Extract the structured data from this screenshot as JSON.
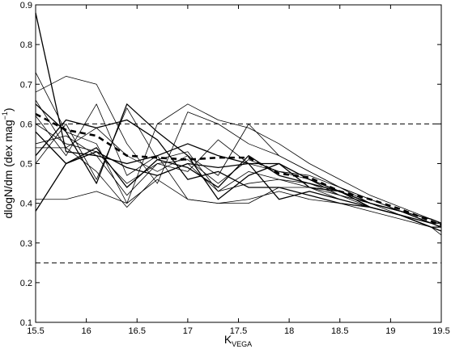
{
  "chart_data": {
    "type": "line",
    "xlabel": "K",
    "xlabel_sub": "VEGA",
    "ylabel": "dlogN/dm (dex mag",
    "ylabel_sup": "−1",
    "ylabel_end": ")",
    "xlim": [
      15.5,
      19.5
    ],
    "ylim": [
      0.1,
      0.9
    ],
    "xticks": [
      "15.5",
      "16",
      "16.5",
      "17",
      "17.5",
      "18",
      "18.5",
      "19",
      "19.5"
    ],
    "yticks": [
      "0.1",
      "0.2",
      "0.3",
      "0.4",
      "0.5",
      "0.6",
      "0.7",
      "0.8",
      "0.9"
    ],
    "reference_lines": [
      0.6,
      0.25
    ],
    "x": [
      15.5,
      15.8,
      16.1,
      16.4,
      16.7,
      17.0,
      17.3,
      17.6,
      17.9,
      18.2,
      18.5,
      18.8,
      19.1,
      19.4,
      19.5
    ],
    "series": [
      {
        "values": [
          0.88,
          0.53,
          0.52,
          0.5,
          0.52,
          0.55,
          0.52,
          0.5,
          0.5,
          0.44,
          0.43,
          0.4,
          0.38,
          0.35,
          0.35
        ]
      },
      {
        "values": [
          0.73,
          0.58,
          0.55,
          0.4,
          0.6,
          0.65,
          0.61,
          0.59,
          0.55,
          0.5,
          0.46,
          0.42,
          0.39,
          0.36,
          0.35
        ]
      },
      {
        "values": [
          0.68,
          0.72,
          0.7,
          0.55,
          0.45,
          0.63,
          0.6,
          0.55,
          0.52,
          0.48,
          0.44,
          0.41,
          0.38,
          0.35,
          0.34
        ]
      },
      {
        "values": [
          0.65,
          0.58,
          0.45,
          0.65,
          0.58,
          0.52,
          0.41,
          0.47,
          0.5,
          0.46,
          0.43,
          0.4,
          0.38,
          0.36,
          0.35
        ]
      },
      {
        "values": [
          0.62,
          0.52,
          0.65,
          0.47,
          0.52,
          0.41,
          0.4,
          0.4,
          0.44,
          0.44,
          0.41,
          0.39,
          0.37,
          0.34,
          0.33
        ]
      },
      {
        "values": [
          0.6,
          0.55,
          0.53,
          0.45,
          0.5,
          0.48,
          0.56,
          0.5,
          0.48,
          0.46,
          0.42,
          0.4,
          0.38,
          0.35,
          0.34
        ]
      },
      {
        "values": [
          0.58,
          0.5,
          0.54,
          0.44,
          0.51,
          0.49,
          0.44,
          0.52,
          0.47,
          0.45,
          0.43,
          0.39,
          0.37,
          0.34,
          0.33
        ]
      },
      {
        "values": [
          0.55,
          0.57,
          0.52,
          0.42,
          0.5,
          0.51,
          0.45,
          0.51,
          0.48,
          0.47,
          0.44,
          0.4,
          0.38,
          0.35,
          0.34
        ]
      },
      {
        "values": [
          0.54,
          0.54,
          0.48,
          0.39,
          0.47,
          0.5,
          0.43,
          0.48,
          0.46,
          0.45,
          0.42,
          0.39,
          0.37,
          0.34,
          0.32
        ]
      },
      {
        "values": [
          0.52,
          0.61,
          0.59,
          0.61,
          0.56,
          0.46,
          0.48,
          0.44,
          0.44,
          0.42,
          0.4,
          0.39,
          0.37,
          0.35,
          0.34
        ]
      },
      {
        "values": [
          0.5,
          0.6,
          0.46,
          0.64,
          0.51,
          0.53,
          0.43,
          0.45,
          0.46,
          0.44,
          0.42,
          0.4,
          0.37,
          0.34,
          0.33
        ]
      },
      {
        "values": [
          0.41,
          0.41,
          0.43,
          0.4,
          0.46,
          0.41,
          0.4,
          0.41,
          0.43,
          0.41,
          0.4,
          0.38,
          0.36,
          0.34,
          0.33
        ]
      },
      {
        "values": [
          0.38,
          0.5,
          0.53,
          0.49,
          0.47,
          0.5,
          0.49,
          0.5,
          0.41,
          0.43,
          0.41,
          0.39,
          0.37,
          0.34,
          0.34
        ]
      },
      {
        "values": [
          0.66,
          0.54,
          0.59,
          0.52,
          0.48,
          0.52,
          0.47,
          0.6,
          0.52,
          0.48,
          0.44,
          0.41,
          0.38,
          0.36,
          0.35
        ]
      }
    ],
    "mean_series": {
      "style": "dashed-thick",
      "values": [
        0.625,
        0.585,
        0.57,
        0.52,
        0.515,
        0.51,
        0.515,
        0.515,
        0.475,
        0.465,
        0.43,
        0.41,
        0.385,
        0.355,
        0.345
      ]
    }
  }
}
